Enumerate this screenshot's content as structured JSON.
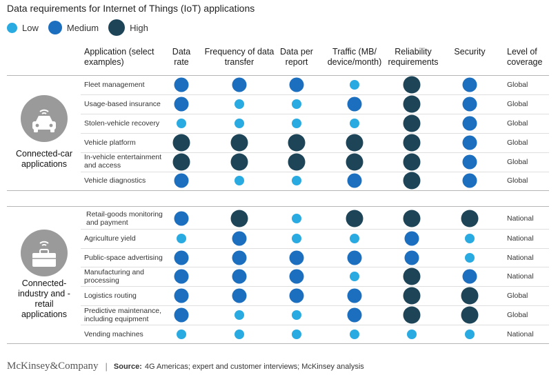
{
  "title": "Data requirements for Internet of Things (IoT) applications",
  "colors": {
    "low": "#29aae1",
    "medium": "#1c6fbf",
    "high": "#1e4557"
  },
  "legend": [
    {
      "key": "low",
      "label": "Low"
    },
    {
      "key": "medium",
      "label": "Medium"
    },
    {
      "key": "high",
      "label": "High"
    }
  ],
  "columns": {
    "application": "Application (select examples)",
    "data_rate": "Data rate",
    "frequency": "Frequency of data transfer",
    "data_per_report": "Data per report",
    "traffic": "Traffic (MB/ device/month)",
    "reliability": "Reliability requirements",
    "security": "Security",
    "coverage": "Level of coverage"
  },
  "groups": [
    {
      "label": "Connected-car applications",
      "icon": "car-icon"
    },
    {
      "label": "Connected-industry and -retail applications",
      "icon": "briefcase-icon"
    }
  ],
  "chart_data": {
    "type": "table",
    "title": "Data requirements for Internet of Things (IoT) applications",
    "scale": [
      "Low",
      "Medium",
      "High"
    ],
    "metrics": [
      "Data rate",
      "Frequency of data transfer",
      "Data per report",
      "Traffic (MB/device/month)",
      "Reliability requirements",
      "Security"
    ],
    "rows": [
      {
        "group": 0,
        "application": "Fleet management",
        "values": [
          "Medium",
          "Medium",
          "Medium",
          "Low",
          "High",
          "Medium"
        ],
        "coverage": "Global"
      },
      {
        "group": 0,
        "application": "Usage-based insurance",
        "values": [
          "Medium",
          "Low",
          "Low",
          "Medium",
          "High",
          "Medium"
        ],
        "coverage": "Global"
      },
      {
        "group": 0,
        "application": "Stolen-vehicle recovery",
        "values": [
          "Low",
          "Low",
          "Low",
          "Low",
          "High",
          "Medium"
        ],
        "coverage": "Global"
      },
      {
        "group": 0,
        "application": "Vehicle platform",
        "values": [
          "High",
          "High",
          "High",
          "High",
          "High",
          "Medium"
        ],
        "coverage": "Global"
      },
      {
        "group": 0,
        "application": "In-vehicle entertainment and access",
        "values": [
          "High",
          "High",
          "High",
          "High",
          "High",
          "Medium"
        ],
        "coverage": "Global"
      },
      {
        "group": 0,
        "application": "Vehicle diagnostics",
        "values": [
          "Medium",
          "Low",
          "Low",
          "Medium",
          "High",
          "Medium"
        ],
        "coverage": "Global"
      },
      {
        "group": 1,
        "application": "Retail-goods monitoring and payment",
        "values": [
          "Medium",
          "High",
          "Low",
          "High",
          "High",
          "High"
        ],
        "coverage": "National"
      },
      {
        "group": 1,
        "application": "Agriculture yield",
        "values": [
          "Low",
          "Medium",
          "Low",
          "Low",
          "Medium",
          "Low"
        ],
        "coverage": "National"
      },
      {
        "group": 1,
        "application": "Public-space advertising",
        "values": [
          "Medium",
          "Medium",
          "Medium",
          "Medium",
          "Medium",
          "Low"
        ],
        "coverage": "National"
      },
      {
        "group": 1,
        "application": "Manufacturing and processing",
        "values": [
          "Medium",
          "Medium",
          "Medium",
          "Low",
          "High",
          "Medium"
        ],
        "coverage": "National"
      },
      {
        "group": 1,
        "application": "Logistics routing",
        "values": [
          "Medium",
          "Medium",
          "Medium",
          "Medium",
          "High",
          "High"
        ],
        "coverage": "Global"
      },
      {
        "group": 1,
        "application": "Predictive maintenance, including equipment",
        "values": [
          "Medium",
          "Low",
          "Low",
          "Medium",
          "High",
          "High"
        ],
        "coverage": "Global"
      },
      {
        "group": 1,
        "application": "Vending machines",
        "values": [
          "Low",
          "Low",
          "Low",
          "Low",
          "Low",
          "Low"
        ],
        "coverage": "National"
      }
    ]
  },
  "footer": {
    "brand": "McKinsey&Company",
    "source_label": "Source:",
    "source_text": "4G Americas; expert and customer interviews; McKinsey analysis"
  }
}
